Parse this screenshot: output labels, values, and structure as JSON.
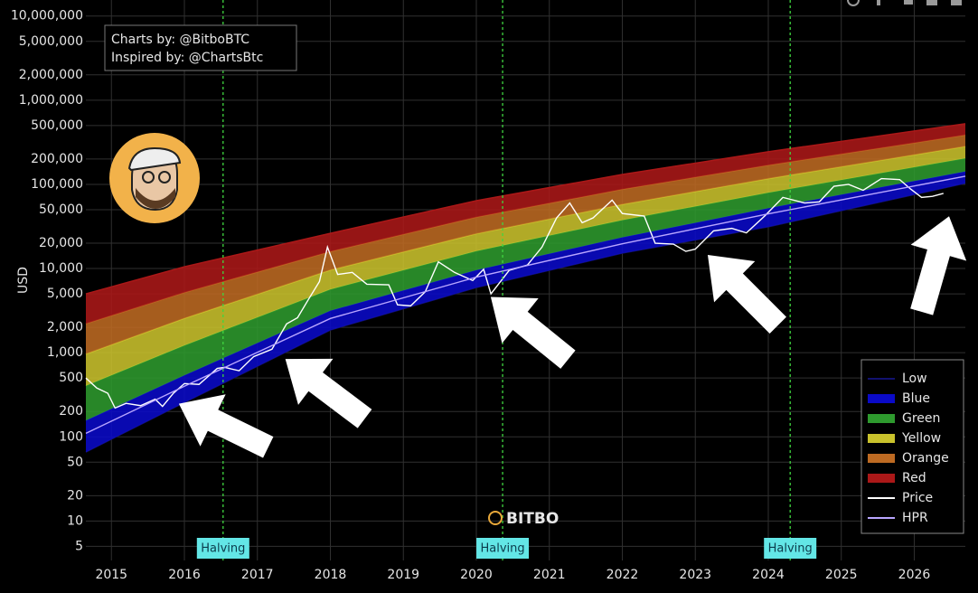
{
  "chart_data": {
    "type": "line",
    "annotations": [
      "Charts by: @BitboBTC",
      "Inspired by: @ChartsBtc"
    ],
    "watermark": "BITBO",
    "ylabel": "USD",
    "log_scale": true,
    "grid": true,
    "legend": "bottom-right",
    "xlim": [
      2014.65,
      2026.7
    ],
    "xticks": [
      2015,
      2016,
      2017,
      2018,
      2019,
      2020,
      2021,
      2022,
      2023,
      2024,
      2025,
      2026
    ],
    "ylim": [
      3.4,
      15500000
    ],
    "yticks": [
      5,
      10,
      20,
      50,
      100,
      200,
      500,
      {
        "value": 1000,
        "label": "1,000"
      },
      {
        "value": 2000,
        "label": "2,000"
      },
      {
        "value": 5000,
        "label": "5,000"
      },
      {
        "value": 10000,
        "label": "10,000"
      },
      {
        "value": 20000,
        "label": "20,000"
      },
      {
        "value": 50000,
        "label": "50,000"
      },
      {
        "value": 100000,
        "label": "100,000"
      },
      {
        "value": 200000,
        "label": "200,000"
      },
      {
        "value": 500000,
        "label": "500,000"
      },
      {
        "value": 1000000,
        "label": "1,000,000"
      },
      {
        "value": 2000000,
        "label": "2,000,000"
      },
      {
        "value": 5000000,
        "label": "5,000,000"
      },
      {
        "value": 10000000,
        "label": "10,000,000"
      }
    ],
    "halvings": {
      "label": "Halving",
      "color": "#3fd63f",
      "x": [
        2016.53,
        2020.36,
        2024.3
      ]
    },
    "series": [
      {
        "name": "Low",
        "style": "line",
        "color": "#121270",
        "x": [
          2014.65,
          2016,
          2018,
          2020,
          2022,
          2024,
          2026.7
        ],
        "values": [
          66,
          256,
          1860,
          5940,
          15200,
          31300,
          103000
        ]
      },
      {
        "name": "Blue",
        "style": "band",
        "color": "#0a0ac8",
        "x": [
          2014.65,
          2016,
          2018,
          2020,
          2022,
          2024,
          2026.7
        ],
        "values": [
          156,
          538,
          3150,
          9570,
          23400,
          52000,
          142000
        ]
      },
      {
        "name": "Green",
        "style": "band",
        "color": "#2e9a2e",
        "x": [
          2014.65,
          2016,
          2018,
          2020,
          2022,
          2024,
          2026.7
        ],
        "values": [
          405,
          1220,
          5660,
          16100,
          37600,
          79600,
          204000
        ]
      },
      {
        "name": "Yellow",
        "style": "band",
        "color": "#c9c22c",
        "x": [
          2014.65,
          2016,
          2018,
          2020,
          2022,
          2024,
          2026.7
        ],
        "values": [
          964,
          2560,
          9590,
          25900,
          57800,
          117000,
          282000
        ]
      },
      {
        "name": "Orange",
        "style": "band",
        "color": "#bd6a22",
        "x": [
          2014.65,
          2016,
          2018,
          2020,
          2022,
          2024,
          2026.7
        ],
        "values": [
          2210,
          5190,
          15900,
          40800,
          87300,
          169000,
          385000
        ]
      },
      {
        "name": "Red",
        "style": "band",
        "color": "#ab1818",
        "x": [
          2014.65,
          2016,
          2018,
          2020,
          2022,
          2024,
          2026.7
        ],
        "values": [
          5000,
          10500,
          26200,
          64000,
          131000,
          244000,
          525000
        ]
      },
      {
        "name": "Price",
        "style": "line",
        "color": "#ffffff",
        "x": [
          2014.65,
          2014.8,
          2014.95,
          2015.05,
          2015.2,
          2015.4,
          2015.6,
          2015.7,
          2015.85,
          2016.0,
          2016.2,
          2016.45,
          2016.55,
          2016.75,
          2016.95,
          2017.2,
          2017.4,
          2017.55,
          2017.7,
          2017.85,
          2017.96,
          2018.1,
          2018.3,
          2018.5,
          2018.8,
          2018.92,
          2019.1,
          2019.3,
          2019.48,
          2019.7,
          2019.95,
          2020.1,
          2020.2,
          2020.45,
          2020.7,
          2020.9,
          2021.1,
          2021.28,
          2021.45,
          2021.6,
          2021.86,
          2022.0,
          2022.3,
          2022.45,
          2022.7,
          2022.87,
          2023.0,
          2023.25,
          2023.5,
          2023.7,
          2023.95,
          2024.2,
          2024.5,
          2024.7,
          2024.9,
          2025.1,
          2025.3,
          2025.55,
          2025.8,
          2025.95,
          2026.1,
          2026.25,
          2026.4
        ],
        "values": [
          500,
          380,
          330,
          220,
          250,
          235,
          280,
          230,
          330,
          430,
          420,
          650,
          670,
          610,
          900,
          1100,
          2200,
          2600,
          4300,
          7000,
          18000,
          8500,
          9000,
          6500,
          6400,
          3700,
          3600,
          5300,
          12000,
          9000,
          7200,
          9800,
          5000,
          9500,
          11000,
          18000,
          40000,
          60000,
          35000,
          40000,
          65000,
          45000,
          42000,
          20000,
          19500,
          16000,
          17000,
          28000,
          30000,
          26500,
          42000,
          70000,
          60000,
          62000,
          95000,
          100000,
          85000,
          117000,
          114000,
          88000,
          70000,
          72000,
          78000
        ]
      },
      {
        "name": "HPR",
        "style": "line",
        "color": "#b9a6ff",
        "x": [
          2014.65,
          2016,
          2018,
          2020,
          2022,
          2024,
          2026.7
        ],
        "values": [
          110,
          400,
          2550,
          7900,
          19700,
          44600,
          125000
        ]
      }
    ]
  }
}
